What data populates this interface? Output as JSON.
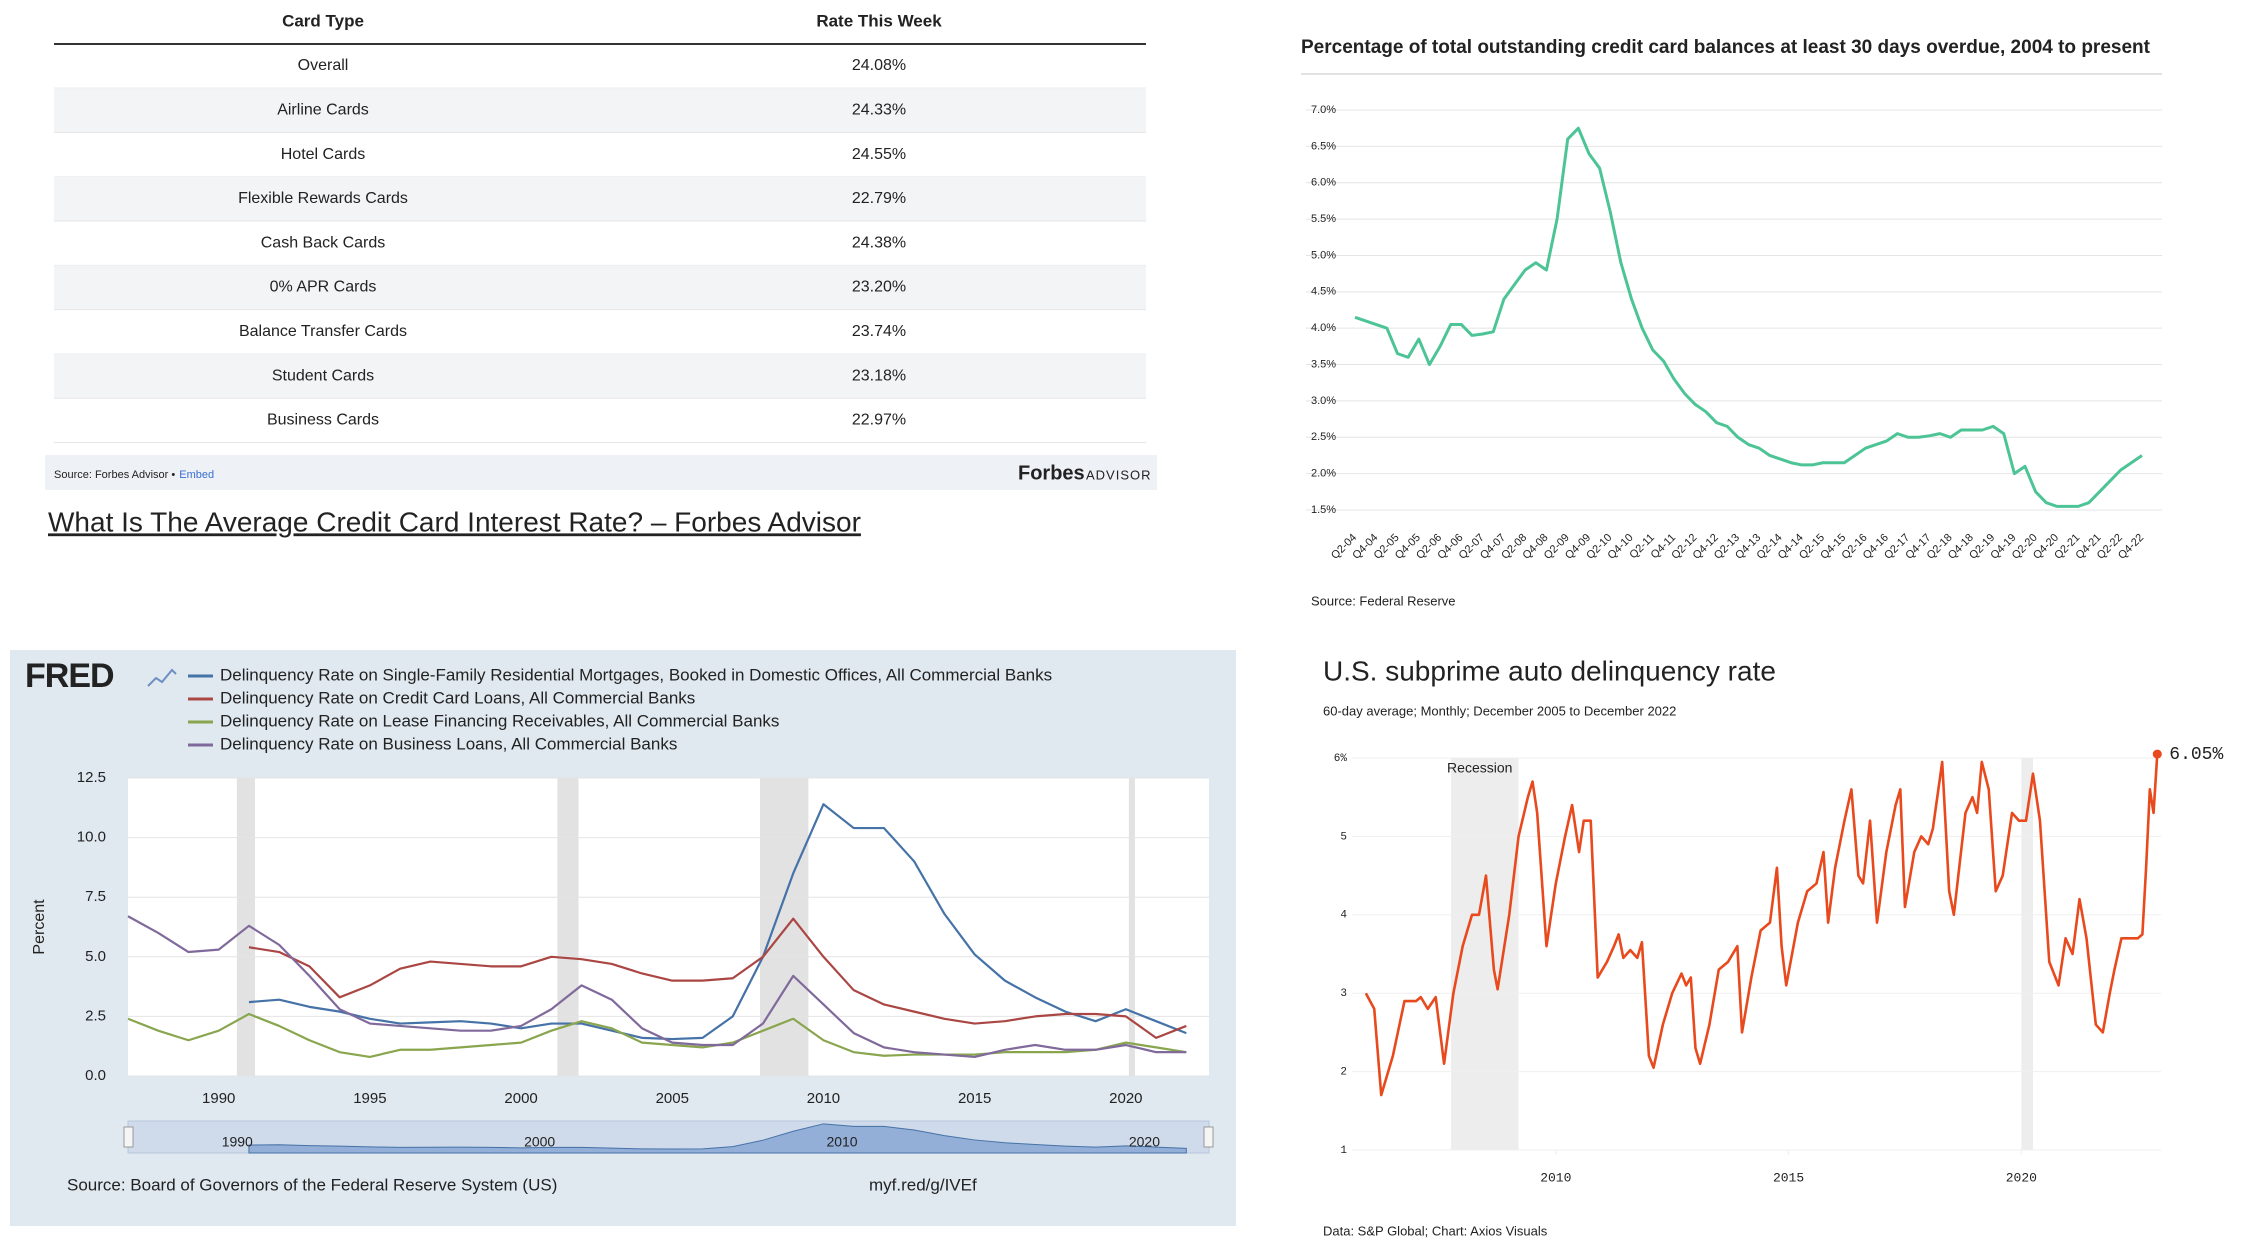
{
  "table": {
    "header": [
      "Card Type",
      "Rate This Week"
    ],
    "rows": [
      [
        "Overall",
        "24.08%"
      ],
      [
        "Airline Cards",
        "24.33%"
      ],
      [
        "Hotel Cards",
        "24.55%"
      ],
      [
        "Flexible Rewards Cards",
        "22.79%"
      ],
      [
        "Cash Back Cards",
        "24.38%"
      ],
      [
        "0% APR Cards",
        "23.20%"
      ],
      [
        "Balance Transfer Cards",
        "23.74%"
      ],
      [
        "Student Cards",
        "23.18%"
      ],
      [
        "Business Cards",
        "22.97%"
      ]
    ],
    "source": "Source: Forbes Advisor •",
    "embed": "Embed",
    "logo": "Forbes",
    "logo_sub": "ADVISOR",
    "link": "What Is The Average Credit Card Interest Rate? – Forbes Advisor"
  },
  "chart_data": [
    {
      "type": "line",
      "title": "Percentage of total outstanding credit card balances at least 30 days overdue, 2004 to present",
      "categories": [
        "Q2-04",
        null,
        "Q4-04",
        null,
        "Q2-05",
        null,
        "Q4-05",
        null,
        "Q2-06",
        null,
        "Q4-06",
        null,
        "Q2-07",
        null,
        "Q4-07",
        null,
        "Q2-08",
        null,
        "Q4-08",
        null,
        "Q2-09",
        null,
        "Q4-09",
        null,
        "Q2-10",
        null,
        "Q4-10",
        null,
        "Q2-11",
        null,
        "Q4-11",
        null,
        "Q2-12",
        null,
        "Q4-12",
        null,
        "Q2-13",
        null,
        "Q4-13",
        null,
        "Q2-14",
        null,
        "Q4-14",
        null,
        "Q2-15",
        null,
        "Q4-15",
        null,
        "Q2-16",
        null,
        "Q4-16",
        null,
        "Q2-17",
        null,
        "Q4-17",
        null,
        "Q2-18",
        null,
        "Q4-18",
        null,
        "Q2-19",
        null,
        "Q4-19",
        null,
        "Q2-20",
        null,
        "Q4-20",
        null,
        "Q2-21",
        null,
        "Q4-21",
        null,
        "Q2-22",
        null,
        "Q4-22"
      ],
      "series": [
        {
          "color": "#4cc496",
          "values": [
            4.15,
            4.1,
            4.05,
            4.0,
            3.65,
            3.6,
            3.85,
            3.5,
            3.75,
            4.05,
            4.05,
            3.9,
            3.92,
            3.95,
            4.4,
            4.6,
            4.8,
            4.9,
            4.8,
            5.5,
            6.6,
            6.75,
            6.4,
            6.2,
            5.6,
            4.9,
            4.4,
            4.0,
            3.7,
            3.55,
            3.3,
            3.1,
            2.95,
            2.85,
            2.7,
            2.65,
            2.5,
            2.4,
            2.35,
            2.25,
            2.2,
            2.15,
            2.12,
            2.12,
            2.15,
            2.15,
            2.15,
            2.25,
            2.35,
            2.4,
            2.45,
            2.55,
            2.5,
            2.5,
            2.52,
            2.55,
            2.5,
            2.6,
            2.6,
            2.6,
            2.65,
            2.55,
            2.0,
            2.1,
            1.75,
            1.6,
            1.55,
            1.55,
            1.55,
            1.6,
            1.75,
            1.9,
            2.05,
            2.15,
            2.25
          ]
        }
      ],
      "ylim": [
        1.5,
        7.0
      ],
      "yticks": [
        {
          "value": 1.5,
          "label": "1.5%"
        },
        {
          "value": 2.0,
          "label": "2.0%"
        },
        {
          "value": 2.5,
          "label": "2.5%"
        },
        {
          "value": 3.0,
          "label": "3.0%"
        },
        {
          "value": 3.5,
          "label": "3.5%"
        },
        {
          "value": 4.0,
          "label": "4.0%"
        },
        {
          "value": 4.5,
          "label": "4.5%"
        },
        {
          "value": 5.0,
          "label": "5.0%"
        },
        {
          "value": 5.5,
          "label": "5.5%"
        },
        {
          "value": 6.0,
          "label": "6.0%"
        },
        {
          "value": 6.5,
          "label": "6.5%"
        },
        {
          "value": 7.0,
          "label": "7.0%"
        }
      ],
      "grid": true,
      "source": "Source: Federal Reserve"
    },
    {
      "type": "line",
      "logo": "FRED",
      "ylabel": "Percent",
      "x": [
        1987,
        1988,
        1989,
        1990,
        1991,
        1992,
        1993,
        1994,
        1995,
        1996,
        1997,
        1998,
        1999,
        2000,
        2001,
        2002,
        2003,
        2004,
        2005,
        2006,
        2007,
        2008,
        2009,
        2010,
        2011,
        2012,
        2013,
        2014,
        2015,
        2016,
        2017,
        2018,
        2019,
        2020,
        2021,
        2022
      ],
      "series": [
        {
          "name": "Delinquency Rate on Single-Family Residential Mortgages, Booked in Domestic Offices, All Commercial Banks",
          "color": "#4572a7",
          "values": [
            null,
            null,
            null,
            null,
            3.1,
            3.2,
            2.9,
            2.7,
            2.4,
            2.2,
            2.25,
            2.3,
            2.2,
            2.0,
            2.2,
            2.2,
            1.9,
            1.6,
            1.55,
            1.6,
            2.5,
            5.0,
            8.5,
            11.4,
            10.4,
            10.4,
            9.0,
            6.8,
            5.1,
            4.0,
            3.3,
            2.7,
            2.3,
            2.8,
            2.3,
            1.8
          ]
        },
        {
          "name": "Delinquency Rate on Credit Card Loans, All Commercial Banks",
          "color": "#aa4643",
          "values": [
            null,
            null,
            null,
            null,
            5.4,
            5.2,
            4.6,
            3.3,
            3.8,
            4.5,
            4.8,
            4.7,
            4.6,
            4.6,
            5.0,
            4.9,
            4.7,
            4.3,
            4.0,
            4.0,
            4.1,
            5.0,
            6.6,
            5.0,
            3.6,
            3.0,
            2.7,
            2.4,
            2.2,
            2.3,
            2.5,
            2.6,
            2.6,
            2.5,
            1.6,
            2.1
          ]
        },
        {
          "name": "Delinquency Rate on Lease Financing Receivables, All Commercial Banks",
          "color": "#89a54e",
          "values": [
            2.4,
            1.9,
            1.5,
            1.9,
            2.6,
            2.1,
            1.5,
            1.0,
            0.8,
            1.1,
            1.1,
            1.2,
            1.3,
            1.4,
            1.9,
            2.3,
            2.0,
            1.4,
            1.3,
            1.2,
            1.4,
            1.9,
            2.4,
            1.5,
            1.0,
            0.85,
            0.9,
            0.9,
            0.9,
            1.0,
            1.0,
            1.0,
            1.1,
            1.4,
            1.2,
            1.0
          ]
        },
        {
          "name": "Delinquency Rate on Business Loans, All Commercial Banks",
          "color": "#80699b",
          "values": [
            6.7,
            6.0,
            5.2,
            5.3,
            6.3,
            5.5,
            4.2,
            2.8,
            2.2,
            2.1,
            2.0,
            1.9,
            1.9,
            2.1,
            2.8,
            3.8,
            3.2,
            2.0,
            1.4,
            1.3,
            1.3,
            2.2,
            4.2,
            3.0,
            1.8,
            1.2,
            1.0,
            0.9,
            0.8,
            1.1,
            1.3,
            1.1,
            1.1,
            1.3,
            1.0,
            1.0
          ]
        }
      ],
      "xlim": [
        1987,
        2022.75
      ],
      "xticks": [
        1990,
        1995,
        2000,
        2005,
        2010,
        2015,
        2020
      ],
      "ylim": [
        0,
        12.5
      ],
      "yticks": [
        {
          "value": 0,
          "label": "0.0"
        },
        2.5,
        {
          "value": 5,
          "label": "5.0"
        },
        7.5,
        {
          "value": 10,
          "label": "10.0"
        },
        12.5
      ],
      "grid": true,
      "recessions": [
        [
          1990.6,
          1991.2
        ],
        [
          2001.2,
          2001.9
        ],
        [
          2007.9,
          2009.5
        ],
        [
          2020.1,
          2020.3
        ]
      ],
      "navigator_xticks": [
        1990,
        2000,
        2010,
        2020
      ],
      "source": "Source: Board of Governors of the Federal Reserve System (US)",
      "short_url": "myf.red/g/IVEf"
    },
    {
      "type": "line",
      "title": "U.S. subprime auto delinquency rate",
      "subtitle": "60-day average; Monthly; December 2005 to December 2022",
      "x": [
        2005.92,
        2006.1,
        2006.25,
        2006.5,
        2006.75,
        2007.0,
        2007.1,
        2007.25,
        2007.42,
        2007.6,
        2007.8,
        2008.0,
        2008.2,
        2008.35,
        2008.5,
        2008.67,
        2008.75,
        2009.0,
        2009.2,
        2009.4,
        2009.5,
        2009.6,
        2009.8,
        2010.0,
        2010.2,
        2010.35,
        2010.5,
        2010.6,
        2010.75,
        2010.9,
        2011.1,
        2011.25,
        2011.35,
        2011.45,
        2011.6,
        2011.75,
        2011.85,
        2012.0,
        2012.1,
        2012.3,
        2012.5,
        2012.7,
        2012.8,
        2012.9,
        2013.0,
        2013.1,
        2013.3,
        2013.5,
        2013.7,
        2013.9,
        2014.0,
        2014.2,
        2014.4,
        2014.6,
        2014.75,
        2014.85,
        2014.95,
        2015.2,
        2015.4,
        2015.6,
        2015.75,
        2015.85,
        2016.0,
        2016.2,
        2016.35,
        2016.5,
        2016.6,
        2016.75,
        2016.9,
        2017.1,
        2017.3,
        2017.4,
        2017.5,
        2017.7,
        2017.85,
        2018.0,
        2018.1,
        2018.3,
        2018.45,
        2018.55,
        2018.8,
        2018.95,
        2019.05,
        2019.15,
        2019.3,
        2019.45,
        2019.6,
        2019.8,
        2019.95,
        2020.1,
        2020.25,
        2020.4,
        2020.6,
        2020.8,
        2020.95,
        2021.1,
        2021.25,
        2021.4,
        2021.6,
        2021.75,
        2021.9,
        2022.0,
        2022.15,
        2022.3,
        2022.5,
        2022.6,
        2022.68,
        2022.76,
        2022.84,
        2022.92
      ],
      "series": [
        {
          "color": "#e8491d",
          "values": [
            3.0,
            2.8,
            1.7,
            2.2,
            2.9,
            2.9,
            2.95,
            2.8,
            2.95,
            2.1,
            3.0,
            3.6,
            4.0,
            4.0,
            4.5,
            3.3,
            3.05,
            4.0,
            5.0,
            5.5,
            5.7,
            5.3,
            3.6,
            4.4,
            5.0,
            5.4,
            4.8,
            5.2,
            5.2,
            3.2,
            3.4,
            3.6,
            3.75,
            3.45,
            3.55,
            3.45,
            3.65,
            2.2,
            2.05,
            2.6,
            3.0,
            3.25,
            3.1,
            3.2,
            2.3,
            2.1,
            2.6,
            3.3,
            3.4,
            3.6,
            2.5,
            3.2,
            3.8,
            3.9,
            4.6,
            3.6,
            3.1,
            3.9,
            4.3,
            4.4,
            4.8,
            3.9,
            4.6,
            5.2,
            5.6,
            4.5,
            4.4,
            5.2,
            3.9,
            4.8,
            5.4,
            5.6,
            4.1,
            4.8,
            5.0,
            4.9,
            5.1,
            5.95,
            4.3,
            4.0,
            5.3,
            5.5,
            5.3,
            5.95,
            5.6,
            4.3,
            4.5,
            5.3,
            5.2,
            5.2,
            5.8,
            5.2,
            3.4,
            3.1,
            3.7,
            3.5,
            4.2,
            3.7,
            2.6,
            2.5,
            3.0,
            3.3,
            3.7,
            3.7,
            3.7,
            3.75,
            4.6,
            5.6,
            5.3,
            6.05
          ]
        }
      ],
      "end_label": "6.05%",
      "xlim": [
        2005.3,
        2023
      ],
      "xticks": [
        2010,
        2015,
        2020
      ],
      "ylim": [
        1,
        6
      ],
      "yticks": [
        1,
        2,
        3,
        4,
        5,
        {
          "value": 6,
          "label": "6%"
        }
      ],
      "grid": true,
      "recessions": [
        [
          2007.75,
          2009.2
        ],
        [
          2020.0,
          2020.25
        ]
      ],
      "recession_label": "Recession",
      "source": "Data: S&P Global; Chart: Axios Visuals"
    }
  ]
}
